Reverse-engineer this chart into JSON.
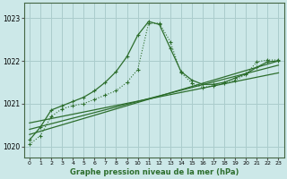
{
  "xlabel": "Graphe pression niveau de la mer (hPa)",
  "background_color": "#cce8e8",
  "grid_color": "#aacccc",
  "line_color": "#2d6e2d",
  "xlim": [
    -0.5,
    23.5
  ],
  "ylim": [
    1019.75,
    1023.35
  ],
  "yticks": [
    1020,
    1021,
    1022,
    1023
  ],
  "xticks": [
    0,
    1,
    2,
    3,
    4,
    5,
    6,
    7,
    8,
    9,
    10,
    11,
    12,
    13,
    14,
    15,
    16,
    17,
    18,
    19,
    20,
    21,
    22,
    23
  ],
  "series1_x": [
    0,
    1,
    2,
    3,
    4,
    5,
    6,
    7,
    8,
    9,
    10,
    11,
    12,
    13,
    14,
    15,
    16,
    17,
    18,
    19,
    20,
    21,
    22,
    23
  ],
  "series1_y": [
    1020.15,
    1020.45,
    1020.85,
    1020.95,
    1021.05,
    1021.15,
    1021.3,
    1021.5,
    1021.75,
    1022.1,
    1022.6,
    1022.92,
    1022.85,
    1022.3,
    1021.75,
    1021.55,
    1021.45,
    1021.45,
    1021.5,
    1021.6,
    1021.7,
    1021.85,
    1021.98,
    1022.0
  ],
  "series2_x": [
    0,
    1,
    2,
    3,
    4,
    5,
    6,
    7,
    8,
    9,
    10,
    11,
    12,
    13,
    14,
    15,
    16,
    17,
    18,
    19,
    20,
    21,
    22,
    23
  ],
  "series2_y": [
    1020.05,
    1020.25,
    1020.7,
    1020.88,
    1020.95,
    1021.0,
    1021.1,
    1021.2,
    1021.3,
    1021.5,
    1021.8,
    1022.88,
    1022.88,
    1022.45,
    1021.72,
    1021.48,
    1021.38,
    1021.42,
    1021.48,
    1021.55,
    1021.68,
    1021.98,
    1022.02,
    1022.02
  ],
  "trend1_x": [
    0,
    23
  ],
  "trend1_y": [
    1020.55,
    1021.72
  ],
  "trend2_x": [
    0,
    23
  ],
  "trend2_y": [
    1020.4,
    1021.9
  ],
  "trend3_x": [
    0,
    23
  ],
  "trend3_y": [
    1020.28,
    1022.0
  ]
}
